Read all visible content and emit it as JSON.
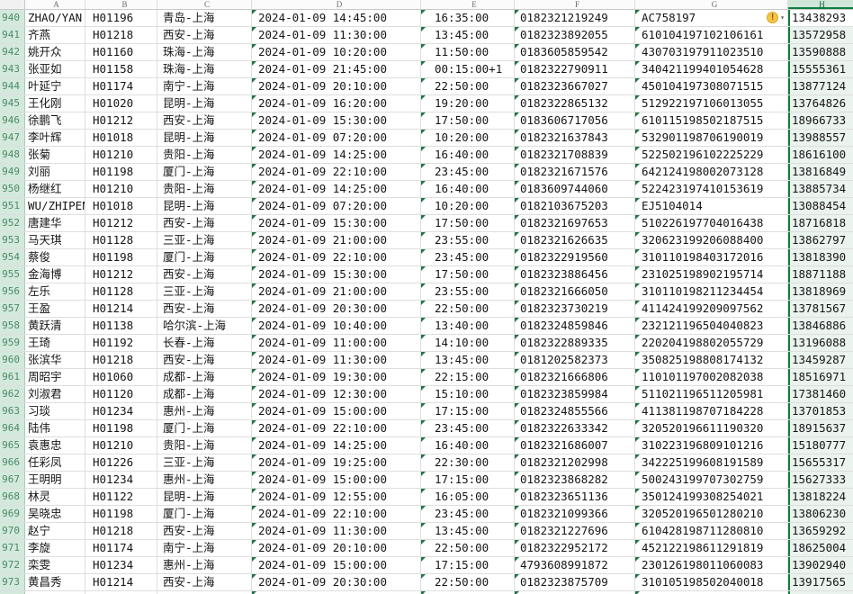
{
  "sheet": {
    "app": "spreadsheet",
    "columns": [
      "A",
      "B",
      "C",
      "D",
      "E",
      "F",
      "G",
      "H"
    ],
    "selected_column": "H",
    "active_row": "940",
    "field_keys": [
      "name",
      "flight",
      "route",
      "depart",
      "arrive",
      "order",
      "idno",
      "phone"
    ],
    "colors": {
      "selection_green": "#107c41",
      "row_header_bg": "#d3e9dc",
      "row_header_text": "#4b8a66",
      "triangle_green": "#217346",
      "warning_yellow": "#f6c544",
      "gridline": "#dedede"
    },
    "warning": {
      "glyph": "!",
      "dropdown_glyph": "▾"
    },
    "rows": [
      {
        "n": "940",
        "name": "ZHAO/YAN",
        "flight": "H01196",
        "route": "青岛-上海",
        "depart": "2024-01-09 14:45:00",
        "arrive": "16:35:00",
        "order": "0182321219249",
        "idno": "AC758197",
        "phone": "13438293"
      },
      {
        "n": "941",
        "name": "齐燕",
        "flight": "H01218",
        "route": "西安-上海",
        "depart": "2024-01-09 11:30:00",
        "arrive": "13:45:00",
        "order": "0182323892055",
        "idno": "610104197102106161",
        "phone": "13572958"
      },
      {
        "n": "942",
        "name": "姚开众",
        "flight": "H01160",
        "route": "珠海-上海",
        "depart": "2024-01-09 10:20:00",
        "arrive": "11:50:00",
        "order": "0183605859542",
        "idno": "430703197911023510",
        "phone": "13590888"
      },
      {
        "n": "943",
        "name": "张亚如",
        "flight": "H01158",
        "route": "珠海-上海",
        "depart": "2024-01-09 21:45:00",
        "arrive": "00:15:00+1",
        "order": "0182322790911",
        "idno": "340421199401054628",
        "phone": "15555361"
      },
      {
        "n": "944",
        "name": "叶延宁",
        "flight": "H01174",
        "route": "南宁-上海",
        "depart": "2024-01-09 20:10:00",
        "arrive": "22:50:00",
        "order": "0182323667027",
        "idno": "450104197308071515",
        "phone": "13877124"
      },
      {
        "n": "945",
        "name": "王化刚",
        "flight": "H01020",
        "route": "昆明-上海",
        "depart": "2024-01-09 16:20:00",
        "arrive": "19:20:00",
        "order": "0182322865132",
        "idno": "512922197106013055",
        "phone": "13764826"
      },
      {
        "n": "946",
        "name": "徐鹏飞",
        "flight": "H01212",
        "route": "西安-上海",
        "depart": "2024-01-09 15:30:00",
        "arrive": "17:50:00",
        "order": "0183606717056",
        "idno": "610115198502187515",
        "phone": "18966733"
      },
      {
        "n": "947",
        "name": "李叶辉",
        "flight": "H01018",
        "route": "昆明-上海",
        "depart": "2024-01-09 07:20:00",
        "arrive": "10:20:00",
        "order": "0182321637843",
        "idno": "532901198706190019",
        "phone": "13988557"
      },
      {
        "n": "948",
        "name": "张菊",
        "flight": "H01210",
        "route": "贵阳-上海",
        "depart": "2024-01-09 14:25:00",
        "arrive": "16:40:00",
        "order": "0182321708839",
        "idno": "522502196102225229",
        "phone": "18616100"
      },
      {
        "n": "949",
        "name": "刘丽",
        "flight": "H01198",
        "route": "厦门-上海",
        "depart": "2024-01-09 22:10:00",
        "arrive": "23:45:00",
        "order": "0182321671576",
        "idno": "642124198002073128",
        "phone": "13816849"
      },
      {
        "n": "950",
        "name": "杨继红",
        "flight": "H01210",
        "route": "贵阳-上海",
        "depart": "2024-01-09 14:25:00",
        "arrive": "16:40:00",
        "order": "0183609744060",
        "idno": "522423197410153619",
        "phone": "13885734"
      },
      {
        "n": "951",
        "name": "WU/ZHIPEN",
        "flight": "H01018",
        "route": "昆明-上海",
        "depart": "2024-01-09 07:20:00",
        "arrive": "10:20:00",
        "order": "0182103675203",
        "idno": "EJ5104014",
        "phone": "13088454"
      },
      {
        "n": "952",
        "name": "唐建华",
        "flight": "H01212",
        "route": "西安-上海",
        "depart": "2024-01-09 15:30:00",
        "arrive": "17:50:00",
        "order": "0182321697653",
        "idno": "510226197704016438",
        "phone": "18716818"
      },
      {
        "n": "953",
        "name": "马天琪",
        "flight": "H01128",
        "route": "三亚-上海",
        "depart": "2024-01-09 21:00:00",
        "arrive": "23:55:00",
        "order": "0182321626635",
        "idno": "320623199206088400",
        "phone": "13862797"
      },
      {
        "n": "954",
        "name": "蔡俊",
        "flight": "H01198",
        "route": "厦门-上海",
        "depart": "2024-01-09 22:10:00",
        "arrive": "23:45:00",
        "order": "0182322919560",
        "idno": "310110198403172016",
        "phone": "13818390"
      },
      {
        "n": "955",
        "name": "金海博",
        "flight": "H01212",
        "route": "西安-上海",
        "depart": "2024-01-09 15:30:00",
        "arrive": "17:50:00",
        "order": "0182323886456",
        "idno": "231025198902195714",
        "phone": "18871188"
      },
      {
        "n": "956",
        "name": "左乐",
        "flight": "H01128",
        "route": "三亚-上海",
        "depart": "2024-01-09 21:00:00",
        "arrive": "23:55:00",
        "order": "0182321666050",
        "idno": "310110198211234454",
        "phone": "13818969"
      },
      {
        "n": "957",
        "name": "王盈",
        "flight": "H01214",
        "route": "西安-上海",
        "depart": "2024-01-09 20:30:00",
        "arrive": "22:50:00",
        "order": "0182323730219",
        "idno": "411424199209097562",
        "phone": "13781567"
      },
      {
        "n": "958",
        "name": "黄跃清",
        "flight": "H01138",
        "route": "哈尔滨-上海",
        "depart": "2024-01-09 10:40:00",
        "arrive": "13:40:00",
        "order": "0182324859846",
        "idno": "232121196504040823",
        "phone": "13846886"
      },
      {
        "n": "959",
        "name": "王琦",
        "flight": "H01192",
        "route": "长春-上海",
        "depart": "2024-01-09 11:00:00",
        "arrive": "14:10:00",
        "order": "0182322889335",
        "idno": "220204198802055729",
        "phone": "13196088"
      },
      {
        "n": "960",
        "name": "张滨华",
        "flight": "H01218",
        "route": "西安-上海",
        "depart": "2024-01-09 11:30:00",
        "arrive": "13:45:00",
        "order": "0181202582373",
        "idno": "350825198808174132",
        "phone": "13459287"
      },
      {
        "n": "961",
        "name": "周昭宇",
        "flight": "H01060",
        "route": "成都-上海",
        "depart": "2024-01-09 19:30:00",
        "arrive": "22:15:00",
        "order": "0182321666806",
        "idno": "110101197002082038",
        "phone": "18516971"
      },
      {
        "n": "962",
        "name": "刘淑君",
        "flight": "H01120",
        "route": "成都-上海",
        "depart": "2024-01-09 12:30:00",
        "arrive": "15:10:00",
        "order": "0182323859984",
        "idno": "511021196511205981",
        "phone": "17381460"
      },
      {
        "n": "963",
        "name": "习琰",
        "flight": "H01234",
        "route": "惠州-上海",
        "depart": "2024-01-09 15:00:00",
        "arrive": "17:15:00",
        "order": "0182324855566",
        "idno": "411381198707184228",
        "phone": "13701853"
      },
      {
        "n": "964",
        "name": "陆伟",
        "flight": "H01198",
        "route": "厦门-上海",
        "depart": "2024-01-09 22:10:00",
        "arrive": "23:45:00",
        "order": "0182322633342",
        "idno": "320520196611190320",
        "phone": "18915637"
      },
      {
        "n": "965",
        "name": "袁惠忠",
        "flight": "H01210",
        "route": "贵阳-上海",
        "depart": "2024-01-09 14:25:00",
        "arrive": "16:40:00",
        "order": "0182321686007",
        "idno": "310223196809101216",
        "phone": "15180777"
      },
      {
        "n": "966",
        "name": "任彩凤",
        "flight": "H01226",
        "route": "三亚-上海",
        "depart": "2024-01-09 19:25:00",
        "arrive": "22:30:00",
        "order": "0182321202998",
        "idno": "342225199608191589",
        "phone": "15655317"
      },
      {
        "n": "967",
        "name": "王明明",
        "flight": "H01234",
        "route": "惠州-上海",
        "depart": "2024-01-09 15:00:00",
        "arrive": "17:15:00",
        "order": "0182323868282",
        "idno": "500243199707302759",
        "phone": "15627333"
      },
      {
        "n": "968",
        "name": "林灵",
        "flight": "H01122",
        "route": "昆明-上海",
        "depart": "2024-01-09 12:55:00",
        "arrive": "16:05:00",
        "order": "0182323651136",
        "idno": "350124199308254021",
        "phone": "13818224"
      },
      {
        "n": "969",
        "name": "吴晓忠",
        "flight": "H01198",
        "route": "厦门-上海",
        "depart": "2024-01-09 22:10:00",
        "arrive": "23:45:00",
        "order": "0182321099366",
        "idno": "320520196501280210",
        "phone": "13806230"
      },
      {
        "n": "970",
        "name": "赵宁",
        "flight": "H01218",
        "route": "西安-上海",
        "depart": "2024-01-09 11:30:00",
        "arrive": "13:45:00",
        "order": "0182321227696",
        "idno": "610428198711280810",
        "phone": "13659292"
      },
      {
        "n": "971",
        "name": "李旋",
        "flight": "H01174",
        "route": "南宁-上海",
        "depart": "2024-01-09 20:10:00",
        "arrive": "22:50:00",
        "order": "0182322952172",
        "idno": "452122198611291819",
        "phone": "18625004"
      },
      {
        "n": "972",
        "name": "栾雯",
        "flight": "H01234",
        "route": "惠州-上海",
        "depart": "2024-01-09 15:00:00",
        "arrive": "17:15:00",
        "order": "4793608991872",
        "idno": "230126198011060083",
        "phone": "13902940"
      },
      {
        "n": "973",
        "name": "黄昌秀",
        "flight": "H01214",
        "route": "西安-上海",
        "depart": "2024-01-09 20:30:00",
        "arrive": "22:50:00",
        "order": "0182323875709",
        "idno": "310105198502040018",
        "phone": "13917565"
      }
    ],
    "partial_row": {
      "n": "974",
      "name": "",
      "flight": "",
      "route": "",
      "depart": "",
      "arrive": "",
      "order": "",
      "idno": "",
      "phone": ""
    }
  }
}
